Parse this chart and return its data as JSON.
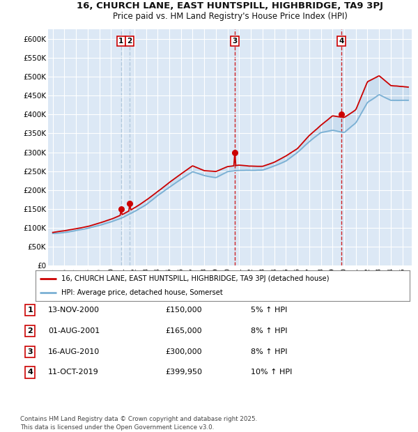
{
  "title_line1": "16, CHURCH LANE, EAST HUNTSPILL, HIGHBRIDGE, TA9 3PJ",
  "title_line2": "Price paid vs. HM Land Registry's House Price Index (HPI)",
  "ylabel_ticks": [
    "£0",
    "£50K",
    "£100K",
    "£150K",
    "£200K",
    "£250K",
    "£300K",
    "£350K",
    "£400K",
    "£450K",
    "£500K",
    "£550K",
    "£600K"
  ],
  "ytick_values": [
    0,
    50000,
    100000,
    150000,
    200000,
    250000,
    300000,
    350000,
    400000,
    450000,
    500000,
    550000,
    600000
  ],
  "ylim": [
    0,
    625000
  ],
  "xlim_start": 1994.6,
  "xlim_end": 2025.8,
  "xtick_years": [
    1995,
    1996,
    1997,
    1998,
    1999,
    2000,
    2001,
    2002,
    2003,
    2004,
    2005,
    2006,
    2007,
    2008,
    2009,
    2010,
    2011,
    2012,
    2013,
    2014,
    2015,
    2016,
    2017,
    2018,
    2019,
    2020,
    2021,
    2022,
    2023,
    2024,
    2025
  ],
  "background_color": "#ffffff",
  "plot_bg_color": "#dce8f5",
  "grid_color": "#ffffff",
  "red_line_color": "#cc0000",
  "blue_line_color": "#7ab0d4",
  "sale_color": "#cc0000",
  "dashed_red_color": "#cc0000",
  "dashed_blue_color": "#aac4d8",
  "sales": [
    {
      "num": 1,
      "year": 2000.87,
      "price": 150000,
      "label": "1"
    },
    {
      "num": 2,
      "year": 2001.58,
      "price": 165000,
      "label": "2"
    },
    {
      "num": 3,
      "year": 2010.62,
      "price": 300000,
      "label": "3"
    },
    {
      "num": 4,
      "year": 2019.78,
      "price": 399950,
      "label": "4"
    }
  ],
  "legend_entries": [
    {
      "label": "16, CHURCH LANE, EAST HUNTSPILL, HIGHBRIDGE, TA9 3PJ (detached house)",
      "color": "#cc0000"
    },
    {
      "label": "HPI: Average price, detached house, Somerset",
      "color": "#7ab0d4"
    }
  ],
  "table_rows": [
    {
      "num": "1",
      "date": "13-NOV-2000",
      "price": "£150,000",
      "change": "5% ↑ HPI"
    },
    {
      "num": "2",
      "date": "01-AUG-2001",
      "price": "£165,000",
      "change": "8% ↑ HPI"
    },
    {
      "num": "3",
      "date": "16-AUG-2010",
      "price": "£300,000",
      "change": "8% ↑ HPI"
    },
    {
      "num": "4",
      "date": "11-OCT-2019",
      "price": "£399,950",
      "change": "10% ↑ HPI"
    }
  ],
  "footer": "Contains HM Land Registry data © Crown copyright and database right 2025.\nThis data is licensed under the Open Government Licence v3.0."
}
